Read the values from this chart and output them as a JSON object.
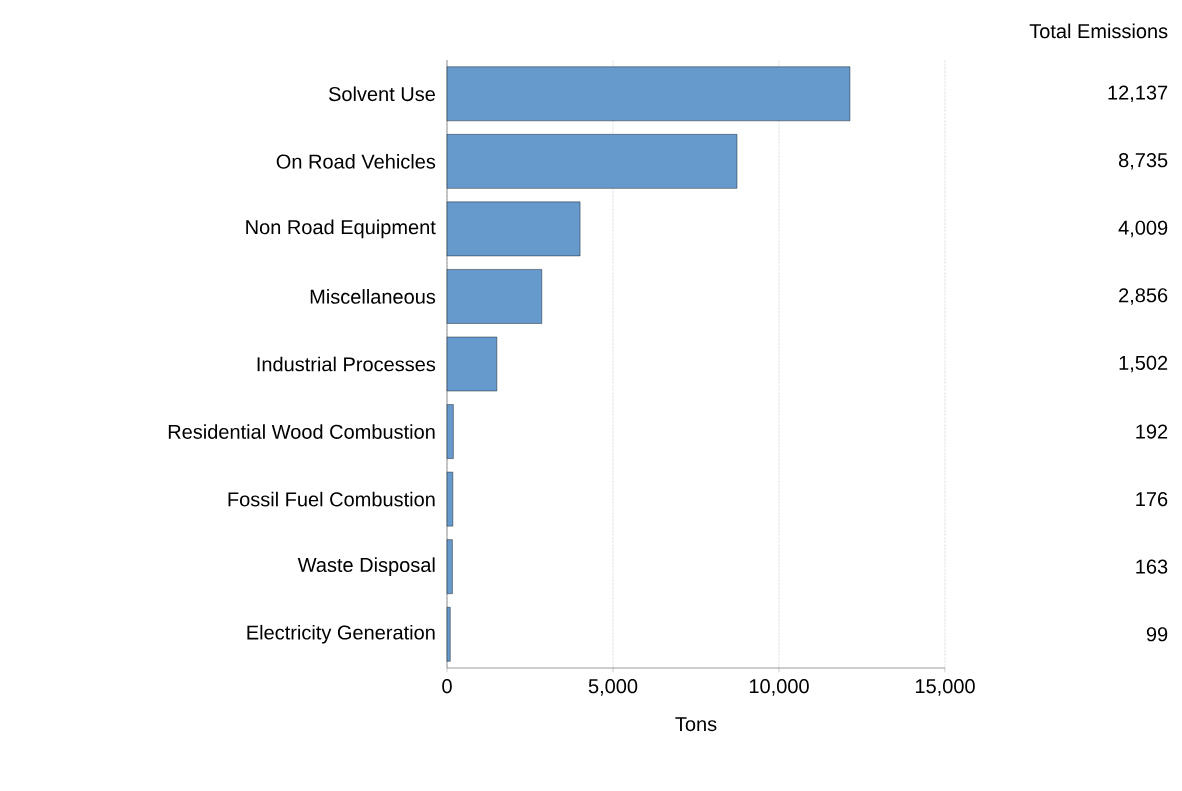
{
  "chart_data": {
    "type": "bar",
    "orientation": "horizontal",
    "xlabel": "Tons",
    "categories": [
      "Solvent Use",
      "On Road Vehicles",
      "Non Road Equipment",
      "Miscellaneous",
      "Industrial Processes",
      "Residential Wood Combustion",
      "Fossil Fuel Combustion",
      "Waste Disposal",
      "Electricity Generation"
    ],
    "values": [
      12137,
      8735,
      4009,
      2856,
      1502,
      192,
      176,
      163,
      99
    ],
    "value_labels": [
      "12,137",
      "8,735",
      "4,009",
      "2,856",
      "1,502",
      "192",
      "176",
      "163",
      "99"
    ],
    "color": "#6699cc",
    "xlim": [
      0,
      15000
    ],
    "xticks": [
      0,
      {
        "value": 5000,
        "label": "5,000"
      },
      {
        "value": 10000,
        "label": "10,000"
      },
      {
        "value": 15000,
        "label": "15,000"
      }
    ],
    "grid": "x",
    "annotations": [
      "Total Emissions"
    ]
  }
}
